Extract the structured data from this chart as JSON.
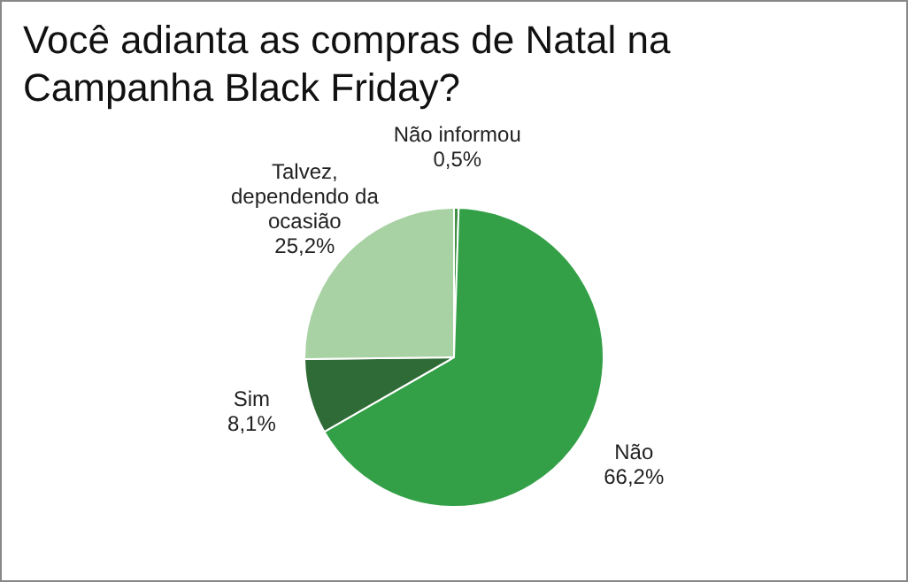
{
  "chart_data": {
    "type": "pie",
    "title": "Você adianta as compras de Natal na Campanha Black Friday?",
    "categories": [
      "Não informou",
      "Não",
      "Sim",
      "Talvez, dependendo da ocasião"
    ],
    "values": [
      0.5,
      66.2,
      8.1,
      25.2
    ],
    "colors": [
      "#3f8f45",
      "#33a047",
      "#2f6b36",
      "#a9d2a4"
    ],
    "value_labels": [
      "0,5%",
      "66,2%",
      "8,1%",
      "25,2%"
    ],
    "legend": false
  }
}
